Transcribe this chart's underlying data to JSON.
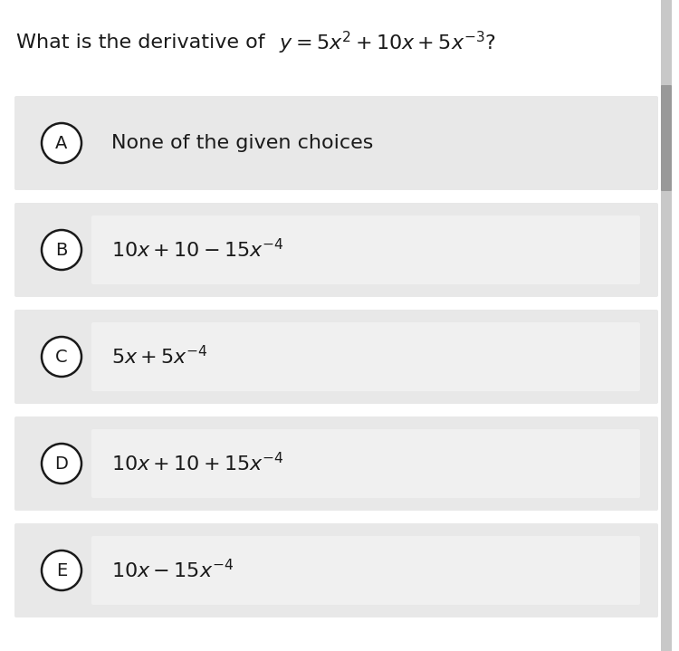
{
  "title_plain": "What is the derivative of ",
  "title_math": "$y=5x^2+10x+5x^{-3}$?",
  "bg_color": "#f0f0f0",
  "white_bg": "#ffffff",
  "panel_outer_bg": "#e8e8e8",
  "panel_inner_bg": "#f0f0f0",
  "text_color": "#1a1a1a",
  "scrollbar_bg": "#c8c8c8",
  "scrollbar_thumb": "#999999",
  "choices": [
    {
      "letter": "A",
      "text_plain": "None of the given choices",
      "is_math": false,
      "has_inner_box": false
    },
    {
      "letter": "B",
      "text_math": "10x+10-15x^{-4}",
      "is_math": true,
      "has_inner_box": true
    },
    {
      "letter": "C",
      "text_math": "5x+5x^{-4}",
      "is_math": true,
      "has_inner_box": true
    },
    {
      "letter": "D",
      "text_math": "10x+10+15x^{-4}",
      "is_math": true,
      "has_inner_box": true
    },
    {
      "letter": "E",
      "text_math": "10x-15x^{-4}",
      "is_math": true,
      "has_inner_box": true
    }
  ],
  "title_fontsize": 16,
  "choice_fontsize": 16,
  "letter_fontsize": 14
}
